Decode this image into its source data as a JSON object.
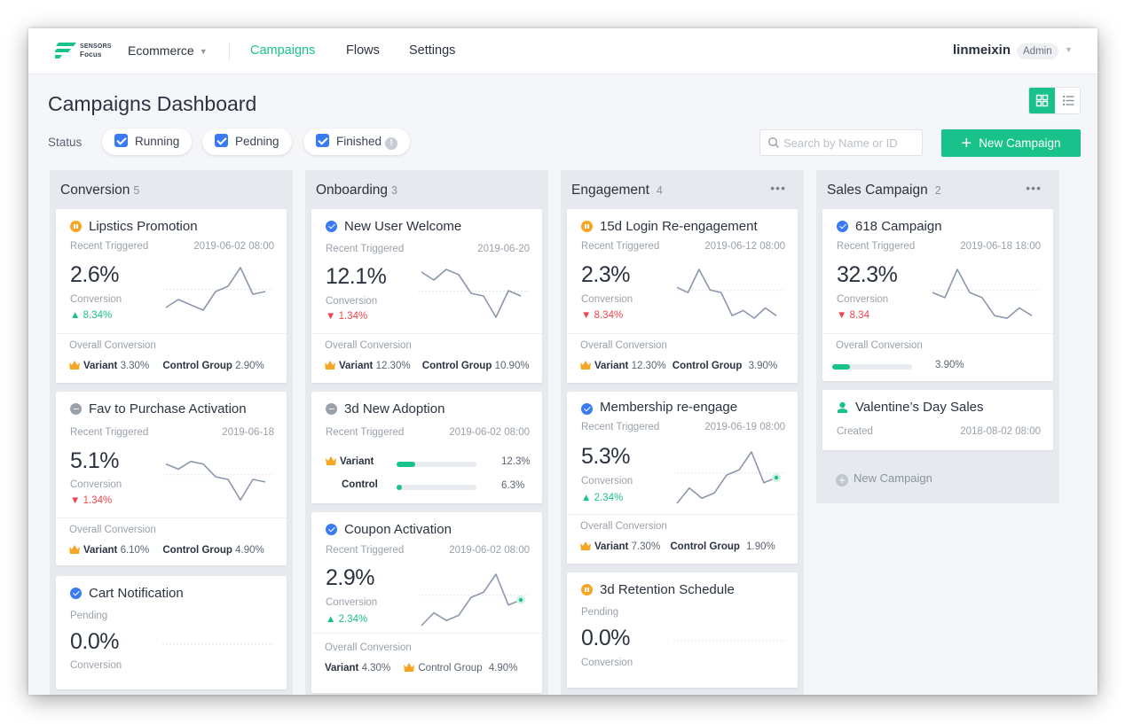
{
  "brand": {
    "line1": "SENSORS",
    "line2": "Focus"
  },
  "nav": {
    "workspace": "Ecommerce",
    "items": [
      "Campaigns",
      "Flows",
      "Settings"
    ],
    "active": "Campaigns"
  },
  "user": {
    "name": "linmeixin",
    "role": "Admin"
  },
  "page": {
    "title": "Campaigns Dashboard"
  },
  "filters": {
    "label": "Status",
    "chips": [
      "Running",
      "Pedning",
      "Finished"
    ],
    "info": "!"
  },
  "search": {
    "placeholder": "Search by Name or ID"
  },
  "new_campaign_button": "New Campaign",
  "colors": {
    "accent": "#19c28b",
    "up": "#19c28b",
    "down": "#f0464f",
    "running": "#3a7af2",
    "paused": "#f6a623"
  },
  "columns": [
    {
      "title": "Conversion",
      "count": "5",
      "cards": [
        {
          "title": "Lipstics Promotion",
          "status_icon": "pause-icon",
          "sub": "Recent Triggered",
          "date": "2019-06-02 08:00",
          "value": "2.6%",
          "conv": "Conversion",
          "delta": "8.34%",
          "delta_dir": "up",
          "spark": [
            0.25,
            0.4,
            0.3,
            0.2,
            0.55,
            0.65,
            1.0,
            0.5,
            0.55
          ],
          "foot_label": "Overall Conversion",
          "variant_label": "Variant",
          "variant": "3.30%",
          "control_label": "Control Group",
          "control": "2.90%"
        },
        {
          "title": "Fav to Purchase Activation",
          "status_icon": "stop-icon",
          "sub": "Recent Triggered",
          "date": "2019-06-18",
          "value": "5.1%",
          "conv": "Conversion",
          "delta": "1.34%",
          "delta_dir": "down",
          "spark": [
            0.8,
            0.7,
            0.85,
            0.8,
            0.55,
            0.5,
            0.1,
            0.5,
            0.45
          ],
          "foot_label": "Overall Conversion",
          "variant_label": "Variant",
          "variant": "6.10%",
          "control_label": "Control Group",
          "control": "4.90%"
        },
        {
          "title": "Cart Notification",
          "status_icon": "check-icon",
          "sub": "Pending",
          "value": "0.0%",
          "conv": "Conversion"
        }
      ]
    },
    {
      "title": "Onboarding",
      "count": "3",
      "cards": [
        {
          "title": "New User Welcome",
          "status_icon": "check-icon",
          "sub": "Recent Triggered",
          "date": "2019-06-20",
          "value": "12.1%",
          "conv": "Conversion",
          "delta": "1.34%",
          "delta_dir": "down",
          "spark": [
            0.95,
            0.8,
            1.0,
            0.9,
            0.55,
            0.5,
            0.1,
            0.6,
            0.5
          ],
          "foot_label": "Overall Conversion",
          "variant_label": "Variant",
          "variant": "12.30%",
          "control_label": "Control Group",
          "control": "10.90%"
        },
        {
          "title": "3d New Adoption",
          "status_icon": "stop-icon",
          "sub": "Recent Triggered",
          "date": "2019-06-02 08:00",
          "bars": [
            {
              "label": "Variant",
              "value": "12.3%",
              "fraction": 0.23,
              "crown": true
            },
            {
              "label": "Control",
              "value": "6.3%",
              "fraction": 0.07,
              "crown": false
            }
          ]
        },
        {
          "title": "Coupon Activation",
          "status_icon": "check-icon",
          "sub": "Recent Triggered",
          "date": "2019-06-02 08:00",
          "value": "2.9%",
          "conv": "Conversion",
          "delta": "2.34%",
          "delta_dir": "up",
          "spark": [
            0.0,
            0.25,
            0.1,
            0.2,
            0.55,
            0.65,
            1.0,
            0.4,
            0.5
          ],
          "foot_label": "Overall Conversion",
          "variant_label": "Variant",
          "variant": "4.30%",
          "control_label": "Control Group",
          "control": "4.90%"
        }
      ]
    },
    {
      "title": "Engagement",
      "count": "4",
      "cards": [
        {
          "title": "15d Login Re-engagement",
          "status_icon": "pause-icon",
          "sub": "Recent Triggered",
          "date": "2019-06-12 08:00",
          "value": "2.3%",
          "conv": "Conversion",
          "delta": "8.34%",
          "delta_dir": "down",
          "spark": [
            0.65,
            0.55,
            1.0,
            0.6,
            0.55,
            0.1,
            0.2,
            0.05,
            0.25,
            0.1
          ],
          "foot_label": "Overall Conversion",
          "variant_label": "Variant",
          "variant": "12.30%",
          "control_label": "Control Group",
          "control": "3.90%"
        },
        {
          "title": "Membership re-engage",
          "status_icon": "check-icon",
          "sub": "Recent Triggered",
          "date": "2019-06-19 08:00",
          "value": "5.3%",
          "conv": "Conversion",
          "delta": "2.34%",
          "delta_dir": "up",
          "spark": [
            0.0,
            0.3,
            0.1,
            0.2,
            0.55,
            0.65,
            1.0,
            0.4,
            0.5
          ],
          "foot_label": "Overall Conversion",
          "variant_label": "Variant",
          "variant": "7.30%",
          "control_label": "Control Group",
          "control": "1.90%"
        },
        {
          "title": "3d Retention Schedule",
          "status_icon": "pause-icon",
          "sub": "Pending",
          "value": "0.0%",
          "conv": "Conversion"
        }
      ]
    },
    {
      "title": "Sales Campaign",
      "count": "2",
      "cards": [
        {
          "title": "618 Campaign",
          "status_icon": "check-icon",
          "sub": "Recent Triggered",
          "date": "2019-06-18 18:00",
          "value": "32.3%",
          "conv": "Conversion",
          "delta": "8.34",
          "delta_dir": "down",
          "spark": [
            0.55,
            0.45,
            1.0,
            0.55,
            0.45,
            0.1,
            0.05,
            0.25,
            0.1
          ],
          "foot_label": "Overall Conversion",
          "progress_value": "3.90%",
          "progress_fraction": 0.22
        },
        {
          "title": "Valentine’s Day Sales",
          "status_icon": "user-icon",
          "sub": "Created",
          "date": "2018-08-02 08:00"
        }
      ],
      "add_label": "New Campaign"
    }
  ]
}
